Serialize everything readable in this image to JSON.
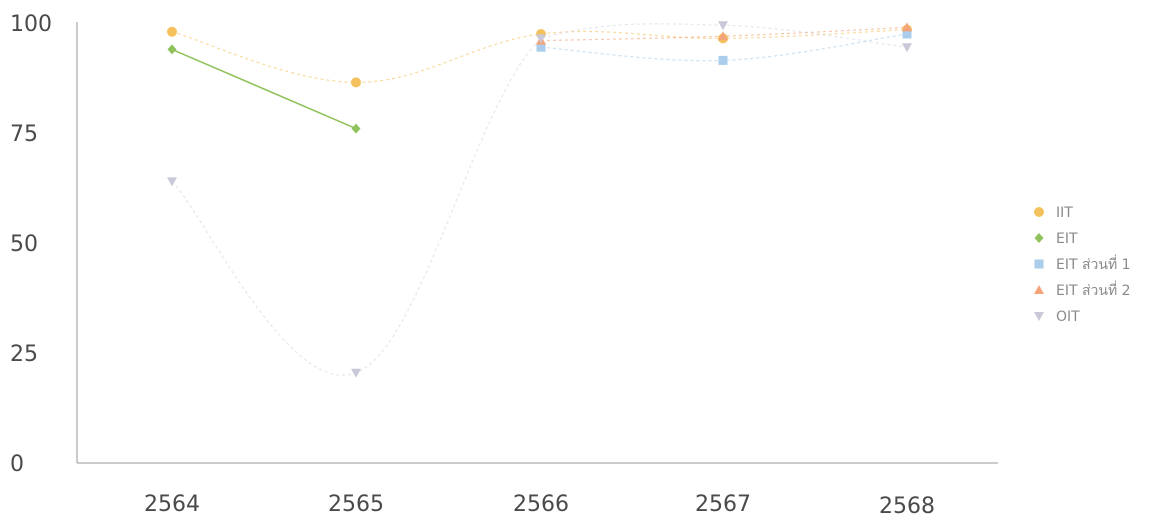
{
  "chart_data": {
    "type": "line",
    "title": "",
    "xlabel": "",
    "ylabel": "",
    "categories": [
      "2564",
      "2565",
      "2566",
      "2567",
      "2568"
    ],
    "ylim": [
      0,
      100
    ],
    "yticks": [
      "0",
      "25",
      "50",
      "75",
      "100"
    ],
    "grid": false,
    "legend_position": "right",
    "series": [
      {
        "name": "IIT",
        "color": "#f5c15d",
        "marker": "circle",
        "values": [
          98,
          86.5,
          97.5,
          96.5,
          98.5
        ]
      },
      {
        "name": "EIT",
        "color": "#8fc25a",
        "marker": "diamond",
        "values": [
          94,
          76,
          null,
          null,
          null
        ]
      },
      {
        "name": "EIT ส่วนที่ 1",
        "color": "#a9cdea",
        "marker": "square",
        "values": [
          null,
          null,
          94.5,
          91.5,
          97.5
        ]
      },
      {
        "name": "EIT ส่วนที่ 2",
        "color": "#f4a47a",
        "marker": "triangle-up",
        "values": [
          null,
          null,
          96,
          97,
          99
        ]
      },
      {
        "name": "OIT",
        "color": "#c8c8d8",
        "marker": "triangle-down",
        "values": [
          64,
          20.5,
          96.5,
          99.5,
          94.5
        ]
      }
    ]
  }
}
